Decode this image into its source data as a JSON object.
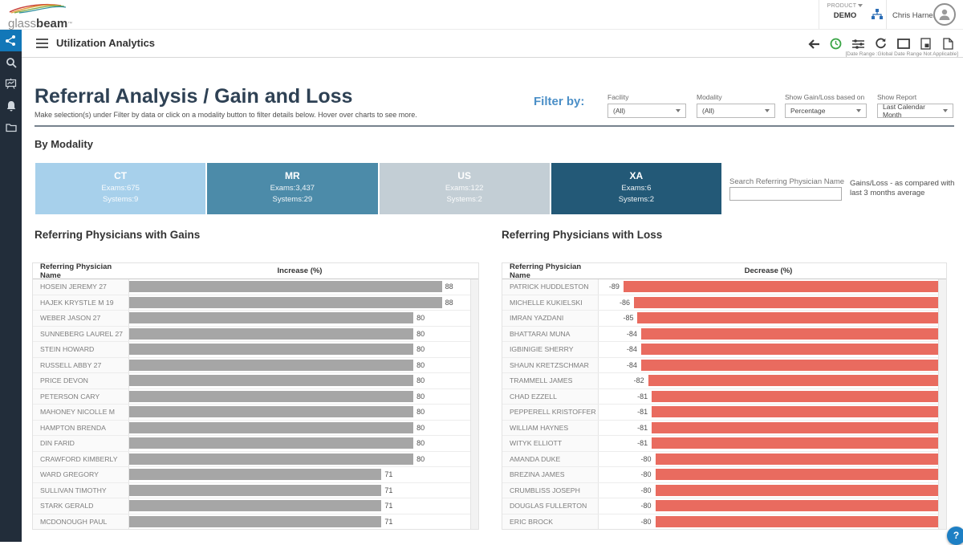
{
  "brand": {
    "glass": "glass",
    "beam": "beam",
    "tm": "™"
  },
  "topbar": {
    "product_label": "PRODUCT",
    "product_value": "DEMO",
    "user_name": "Chris Harner"
  },
  "appbar": {
    "title": "Utilization Analytics",
    "date_range_note": "[Date Range :Global Date Range Not Applicable]"
  },
  "page": {
    "title": "Referral Analysis / Gain and Loss",
    "subtitle": "Make selection(s) under Filter by data or click on a modality button to filter details below. Hover over charts to see more.",
    "filter_by_label": "Filter by:",
    "filters": [
      {
        "label": "Facility",
        "value": "(All)"
      },
      {
        "label": "Modality",
        "value": "(All)"
      },
      {
        "label": "Show Gain/Loss based on",
        "value": "Percentage"
      },
      {
        "label": "Show Report",
        "value": "Last Calendar Month"
      }
    ],
    "by_modality_label": "By Modality",
    "modalities": [
      {
        "code": "CT",
        "exams_text": "Exams:675",
        "systems_text": "Systems:9",
        "color": "#a7d0eb"
      },
      {
        "code": "MR",
        "exams_text": "Exams:3,437",
        "systems_text": "Systems:29",
        "color": "#4c8ba9"
      },
      {
        "code": "US",
        "exams_text": "Exams:122",
        "systems_text": "Systems:2",
        "color": "#c3ced5"
      },
      {
        "code": "XA",
        "exams_text": "Exams:6",
        "systems_text": "Systems:2",
        "color": "#235977"
      }
    ],
    "search_label": "Search Referring Physician Name",
    "search_value": "",
    "note": "Gains/Loss - as compared with last 3 months average"
  },
  "chart_data": [
    {
      "type": "bar",
      "title": "Referring Physicians with Gains",
      "columns": [
        "Referring Physician Name",
        "Increase (%)"
      ],
      "bar_color": "#a6a6a6",
      "axis_max": 96,
      "rows": [
        [
          "HOSEIN JEREMY 27",
          88
        ],
        [
          "HAJEK KRYSTLE M 19",
          88
        ],
        [
          "WEBER JASON 27",
          80
        ],
        [
          "SUNNEBERG LAUREL 27",
          80
        ],
        [
          "STEIN HOWARD",
          80
        ],
        [
          "RUSSELL ABBY 27",
          80
        ],
        [
          "PRICE DEVON",
          80
        ],
        [
          "PETERSON CARY",
          80
        ],
        [
          "MAHONEY NICOLLE M",
          80
        ],
        [
          "HAMPTON BRENDA",
          80
        ],
        [
          "DIN FARID",
          80
        ],
        [
          "CRAWFORD KIMBERLY",
          80
        ],
        [
          "WARD GREGORY",
          71
        ],
        [
          "SULLIVAN TIMOTHY",
          71
        ],
        [
          "STARK GERALD",
          71
        ],
        [
          "MCDONOUGH PAUL",
          71
        ]
      ]
    },
    {
      "type": "bar",
      "title": "Referring Physicians with Loss",
      "columns": [
        "Referring Physician Name",
        "Decrease (%)"
      ],
      "bar_color": "#e96b5f",
      "axis_max": 96,
      "rows": [
        [
          "PATRICK HUDDLESTON",
          -89
        ],
        [
          "MICHELLE KUKIELSKI",
          -86
        ],
        [
          "IMRAN YAZDANI",
          -85
        ],
        [
          "BHATTARAI MUNA",
          -84
        ],
        [
          "IGBINIGIE SHERRY",
          -84
        ],
        [
          "SHAUN KRETZSCHMAR",
          -84
        ],
        [
          "TRAMMELL JAMES",
          -82
        ],
        [
          "CHAD EZZELL",
          -81
        ],
        [
          "PEPPERELL KRISTOFFER",
          -81
        ],
        [
          "WILLIAM HAYNES",
          -81
        ],
        [
          "WITYK ELLIOTT",
          -81
        ],
        [
          "AMANDA DUKE",
          -80
        ],
        [
          "BREZINA JAMES",
          -80
        ],
        [
          "CRUMBLISS JOSEPH",
          -80
        ],
        [
          "DOUGLAS FULLERTON",
          -80
        ],
        [
          "ERIC BROCK",
          -80
        ]
      ]
    }
  ],
  "help": {
    "label": "?"
  }
}
